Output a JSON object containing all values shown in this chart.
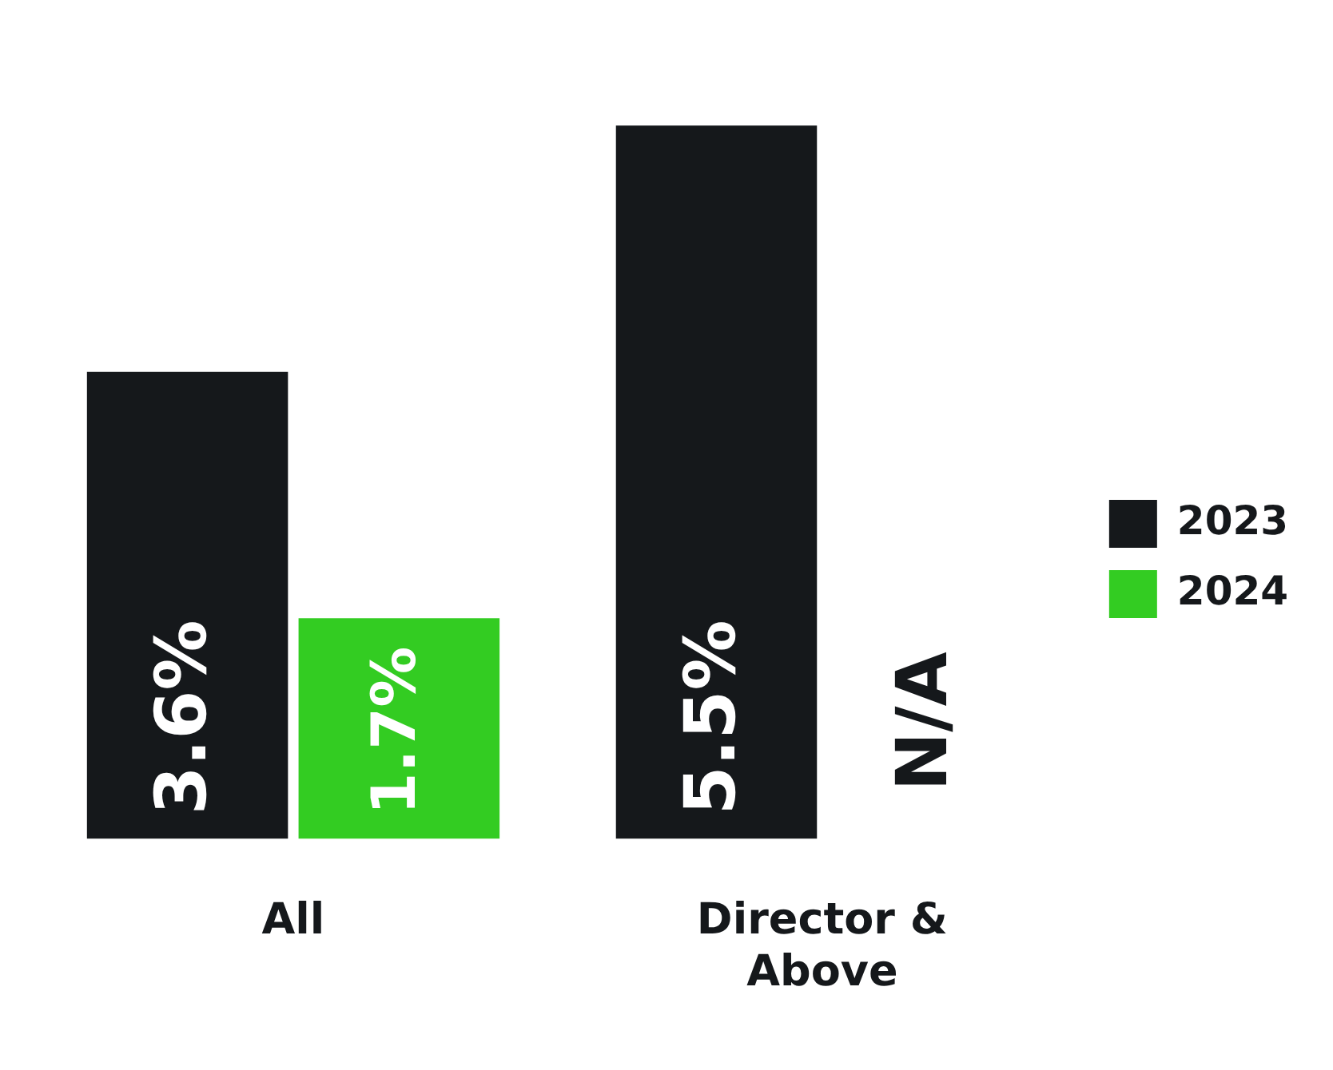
{
  "chart_data": {
    "type": "bar",
    "categories": [
      "All",
      "Director & Above"
    ],
    "series": [
      {
        "name": "2023",
        "color": "#15181b",
        "values": [
          3.6,
          5.5
        ],
        "value_labels": [
          "3.6%",
          "5.5%"
        ]
      },
      {
        "name": "2024",
        "color": "#33cc22",
        "values": [
          1.7,
          null
        ],
        "value_labels": [
          "1.7%",
          "N/A"
        ]
      }
    ],
    "legend": "right",
    "grid": false
  }
}
